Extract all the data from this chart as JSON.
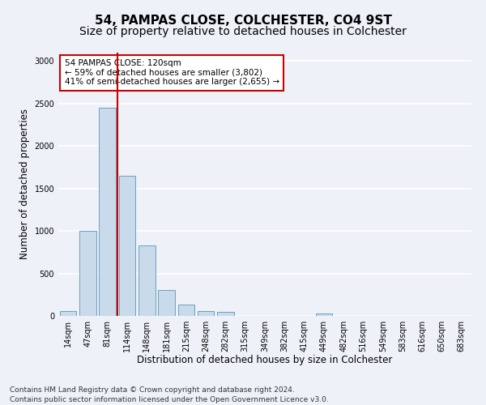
{
  "title": "54, PAMPAS CLOSE, COLCHESTER, CO4 9ST",
  "subtitle": "Size of property relative to detached houses in Colchester",
  "xlabel": "Distribution of detached houses by size in Colchester",
  "ylabel": "Number of detached properties",
  "footer_line1": "Contains HM Land Registry data © Crown copyright and database right 2024.",
  "footer_line2": "Contains public sector information licensed under the Open Government Licence v3.0.",
  "bar_labels": [
    "14sqm",
    "47sqm",
    "81sqm",
    "114sqm",
    "148sqm",
    "181sqm",
    "215sqm",
    "248sqm",
    "282sqm",
    "315sqm",
    "349sqm",
    "382sqm",
    "415sqm",
    "449sqm",
    "482sqm",
    "516sqm",
    "549sqm",
    "583sqm",
    "616sqm",
    "650sqm",
    "683sqm"
  ],
  "bar_values": [
    60,
    1000,
    2450,
    1650,
    830,
    305,
    130,
    55,
    45,
    0,
    0,
    0,
    0,
    30,
    0,
    0,
    0,
    0,
    0,
    0,
    0
  ],
  "bar_color": "#c9daea",
  "bar_edge_color": "#6a9fc0",
  "annotation_text": "54 PAMPAS CLOSE: 120sqm\n← 59% of detached houses are smaller (3,802)\n41% of semi-detached houses are larger (2,655) →",
  "annotation_box_color": "#ffffff",
  "annotation_box_edge_color": "#cc0000",
  "vline_x_index": 2.5,
  "vline_color": "#cc0000",
  "ylim": [
    0,
    3100
  ],
  "yticks": [
    0,
    500,
    1000,
    1500,
    2000,
    2500,
    3000
  ],
  "background_color": "#eef2f8",
  "grid_color": "#ffffff",
  "title_fontsize": 11,
  "subtitle_fontsize": 10,
  "axis_label_fontsize": 8.5,
  "tick_fontsize": 7,
  "footer_fontsize": 6.5,
  "annotation_fontsize": 7.5
}
